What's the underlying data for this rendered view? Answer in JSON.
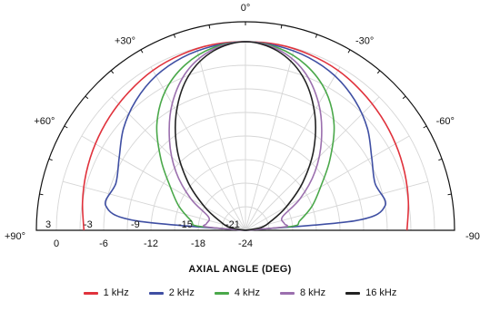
{
  "chart_data": {
    "type": "polar",
    "title": "",
    "xlabel": "AXIAL ANGLE (DEG)",
    "angle_range": [
      -90,
      90
    ],
    "angle_ticks": [
      {
        "angle": 0,
        "label": "0°"
      },
      {
        "angle": 30,
        "label": "+30°"
      },
      {
        "angle": -30,
        "label": "-30°"
      },
      {
        "angle": 60,
        "label": "+60°"
      },
      {
        "angle": -60,
        "label": "-60°"
      },
      {
        "angle": 90,
        "label": "+90°"
      },
      {
        "angle": -90,
        "label": "-90°"
      }
    ],
    "r_range_db": [
      -24,
      0
    ],
    "ring_labels": [
      "0",
      "-6",
      "-12",
      "-18",
      "-24"
    ],
    "inner_ring_labels": [
      "3",
      "-3",
      "-9",
      "-15",
      "-21"
    ],
    "grid": true,
    "legend_position": "bottom",
    "series": [
      {
        "name": "1 kHz",
        "color": "#e0323c",
        "angles": [
          0,
          10,
          20,
          30,
          40,
          50,
          60,
          70,
          80,
          90
        ],
        "values_db": [
          0,
          0,
          -0.2,
          -0.5,
          -1,
          -1.5,
          -2,
          -2.5,
          -3,
          -3.5
        ]
      },
      {
        "name": "2 kHz",
        "color": "#3f4fa3",
        "angles": [
          0,
          10,
          20,
          30,
          40,
          50,
          60,
          70,
          80,
          85,
          90
        ],
        "values_db": [
          0,
          -0.2,
          -0.6,
          -1.3,
          -2.4,
          -3.8,
          -5.5,
          -6.5,
          -6,
          -10,
          -24
        ]
      },
      {
        "name": "4 kHz",
        "color": "#4aa84a",
        "angles": [
          0,
          10,
          20,
          30,
          40,
          50,
          60,
          70,
          80,
          85,
          90
        ],
        "values_db": [
          0,
          -0.4,
          -1.6,
          -3.6,
          -6.5,
          -10,
          -13,
          -15,
          -17,
          -18,
          -24
        ]
      },
      {
        "name": "8 kHz",
        "color": "#9b6fae",
        "angles": [
          0,
          10,
          20,
          30,
          40,
          50,
          60,
          70,
          80,
          85,
          90
        ],
        "values_db": [
          0,
          -0.6,
          -2.4,
          -5.4,
          -9,
          -12.5,
          -16,
          -19,
          -19,
          -19,
          -24
        ]
      },
      {
        "name": "16 kHz",
        "color": "#222222",
        "angles": [
          0,
          10,
          20,
          30,
          40,
          50,
          60,
          70,
          80,
          90
        ],
        "values_db": [
          0,
          -0.8,
          -3,
          -6.5,
          -10.5,
          -14.5,
          -18,
          -20.5,
          -22,
          -24
        ]
      }
    ]
  }
}
